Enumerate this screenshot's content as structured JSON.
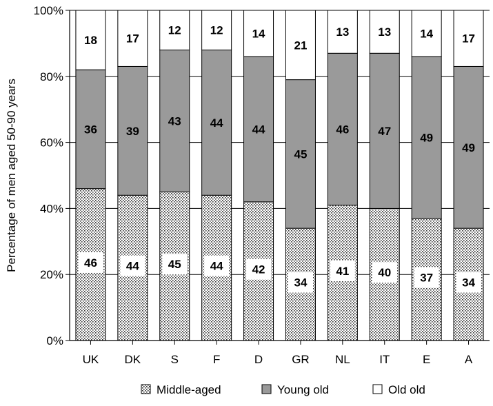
{
  "chart_data": {
    "type": "bar",
    "stacked": true,
    "categories": [
      "UK",
      "DK",
      "S",
      "F",
      "D",
      "GR",
      "NL",
      "IT",
      "E",
      "A"
    ],
    "series": [
      {
        "name": "Middle-aged",
        "values": [
          46,
          44,
          45,
          44,
          42,
          34,
          41,
          40,
          37,
          34
        ],
        "pattern": "dotted"
      },
      {
        "name": "Young old",
        "values": [
          36,
          39,
          43,
          44,
          44,
          45,
          46,
          47,
          49,
          49
        ],
        "color": "#9a9a9a"
      },
      {
        "name": "Old old",
        "values": [
          18,
          17,
          12,
          12,
          14,
          21,
          13,
          13,
          14,
          17
        ],
        "color": "#ffffff"
      }
    ],
    "ylabel": "Percentage of men aged 50-90 years",
    "xlabel": "",
    "ylim": [
      0,
      100
    ],
    "yticks": [
      "0%",
      "20%",
      "40%",
      "60%",
      "80%",
      "100%"
    ],
    "grid": true,
    "legend_position": "bottom"
  }
}
